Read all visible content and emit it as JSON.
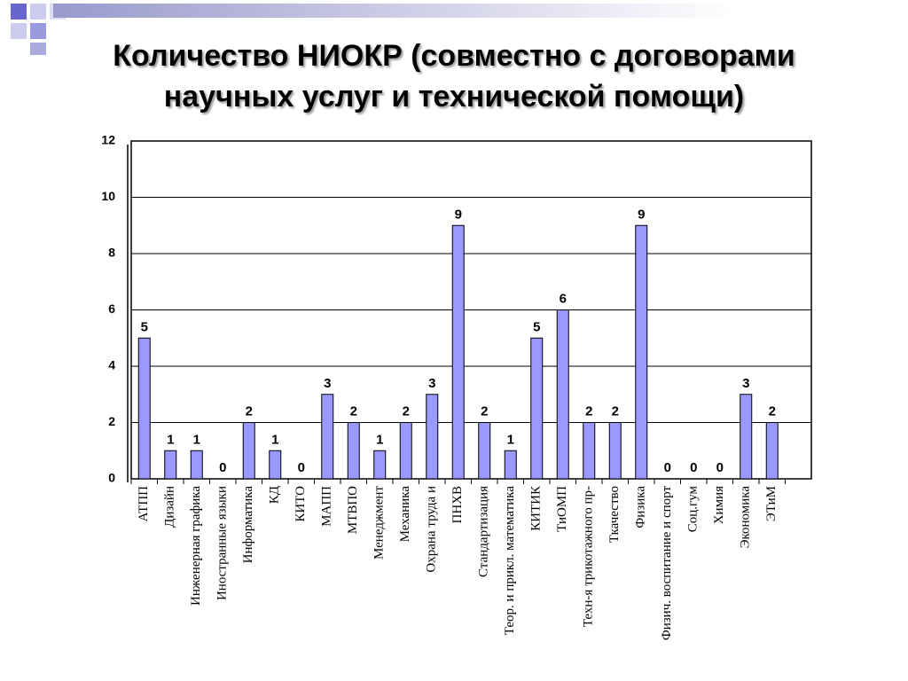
{
  "chart_data": {
    "type": "bar",
    "title": [
      "Количество НИОКР (совместно с договорами",
      "научных услуг и технической помощи)"
    ],
    "categories": [
      "АТПП",
      "Дизайн",
      "Инженерная графика",
      "Иностранные языки",
      "Информатика",
      "КД",
      "КИТО",
      "МАПП",
      "МТВПО",
      "Менеджмент",
      "Механика",
      "Охрана труда и",
      "ПНХВ",
      "Стандартизация",
      "Теор. и прикл. математика",
      "КИТИК",
      "ТиОМП",
      "Техн-я трикотажного пр-",
      "Ткачество",
      "Физика",
      "Физич. воспитание и спорт",
      "Соц.гум",
      "Химия",
      "Экономика",
      "ЭТиМ",
      null
    ],
    "values": [
      5,
      1,
      1,
      0,
      2,
      1,
      0,
      3,
      2,
      1,
      2,
      3,
      9,
      2,
      1,
      5,
      6,
      2,
      2,
      9,
      0,
      0,
      0,
      3,
      2,
      null
    ],
    "color": "#9999ff",
    "ylim": [
      0,
      12
    ],
    "yticks": [
      0,
      2,
      4,
      6,
      8,
      10,
      12
    ],
    "grid": true
  }
}
